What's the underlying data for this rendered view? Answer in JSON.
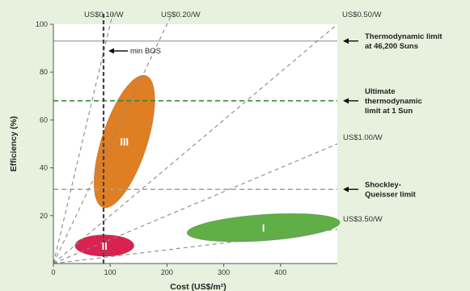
{
  "chart_data": {
    "type": "scatter",
    "xlabel": "Cost (US$/m²)",
    "ylabel": "Efficiency (%)",
    "xlim": [
      0,
      500
    ],
    "ylim": [
      0,
      100
    ],
    "x_ticks": [
      "0",
      "100",
      "200",
      "300",
      "400"
    ],
    "y_ticks": [
      "20",
      "40",
      "60",
      "80",
      "100"
    ],
    "grid": false,
    "cost_lines": [
      {
        "label": "US$0.10/W",
        "usd_per_watt": 0.1
      },
      {
        "label": "US$0.20/W",
        "usd_per_watt": 0.2
      },
      {
        "label": "US$0.50/W",
        "usd_per_watt": 0.5
      },
      {
        "label": "US$1.00/W",
        "usd_per_watt": 1.0
      },
      {
        "label": "US$3.50/W",
        "usd_per_watt": 3.5
      }
    ],
    "limits": [
      {
        "label_lines": [
          "Thermodynamic limit",
          "at 46,200 Suns"
        ],
        "efficiency": 93,
        "style": "solid",
        "color": "#a0a0a0"
      },
      {
        "label_lines": [
          "Ultimate",
          "thermodynamic",
          "limit at 1 Sun"
        ],
        "efficiency": 68,
        "style": "dashed",
        "color": "#2f8a2f"
      },
      {
        "label_lines": [
          "Shockley-",
          "Queisser limit"
        ],
        "efficiency": 31,
        "style": "dashed",
        "color": "#a0a0a0"
      }
    ],
    "min_bos": {
      "label": "min BOS",
      "cost": 90
    },
    "regions": [
      {
        "label": "I",
        "cx": 370,
        "cy": 15,
        "rx": 135,
        "ry": 5.5,
        "angle_deg": -4,
        "color": "#5fae46"
      },
      {
        "label": "II",
        "cx": 90,
        "cy": 7.5,
        "rx": 52,
        "ry": 4.5,
        "angle_deg": 0,
        "color": "#d9224f"
      },
      {
        "label": "III",
        "cx": 125,
        "cy": 51,
        "rx": 40,
        "ry": 29,
        "angle_deg": 18,
        "color": "#e07e24"
      }
    ]
  }
}
